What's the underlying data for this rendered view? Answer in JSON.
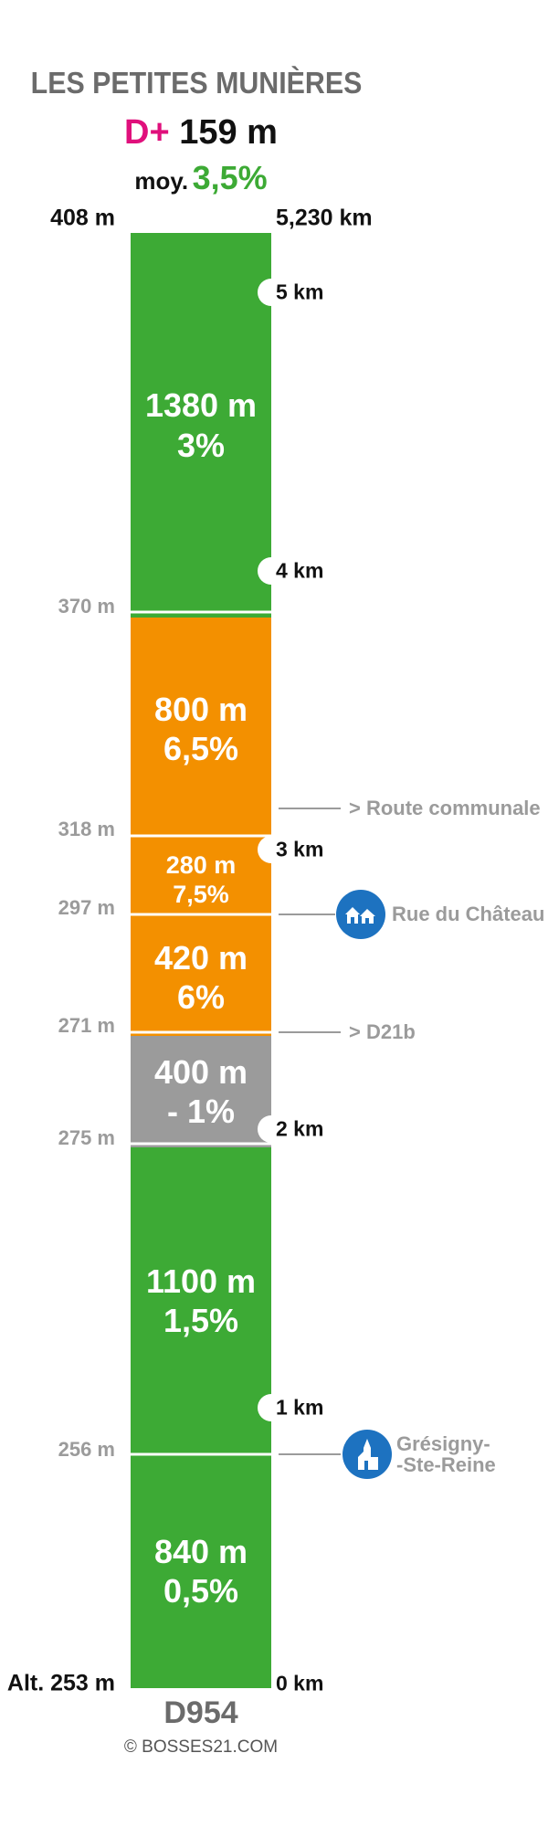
{
  "title": "LES PETITES MUNIÈRES",
  "elevation_gain": {
    "label": "D+",
    "value": "159 m"
  },
  "average": {
    "label": "moy.",
    "value": "3,5%"
  },
  "altitudes": [
    "408 m",
    "370 m",
    "318 m",
    "297 m",
    "271 m",
    "275 m",
    "256 m",
    "Alt. 253 m"
  ],
  "total_distance": "5,230 km",
  "km_markers": [
    "0 km",
    "1 km",
    "2 km",
    "3 km",
    "4 km",
    "5 km"
  ],
  "segments": [
    {
      "length": "840 m",
      "grade": "0,5%",
      "color": "#3daa35",
      "start_m": 0,
      "end_m": 840
    },
    {
      "length": "1100 m",
      "grade": "1,5%",
      "color": "#3daa35",
      "start_m": 840,
      "end_m": 1940
    },
    {
      "length": "400 m",
      "grade": "- 1%",
      "color": "#9b9b9b",
      "start_m": 1940,
      "end_m": 2340
    },
    {
      "length": "420 m",
      "grade": "6%",
      "color": "#f39000",
      "start_m": 2340,
      "end_m": 2760
    },
    {
      "length": "280 m",
      "grade": "7,5%",
      "color": "#f39000",
      "start_m": 2760,
      "end_m": 3040
    },
    {
      "length": "800 m",
      "grade": "6,5%",
      "color": "#f39000",
      "start_m": 3040,
      "end_m": 3840
    },
    {
      "length": "1380 m",
      "grade": "3%",
      "color": "#3daa35",
      "start_m": 3840,
      "end_m": 5220
    }
  ],
  "markers": [
    {
      "text": "> Route communale",
      "icon": ""
    },
    {
      "text": "Rue du Château",
      "icon": "houses-icon"
    },
    {
      "text": "> D21b",
      "icon": ""
    },
    {
      "text": "Grésigny-\n-Ste-Reine",
      "icon": "church-icon"
    }
  ],
  "road": "D954",
  "copyright": "© BOSSES21.COM"
}
